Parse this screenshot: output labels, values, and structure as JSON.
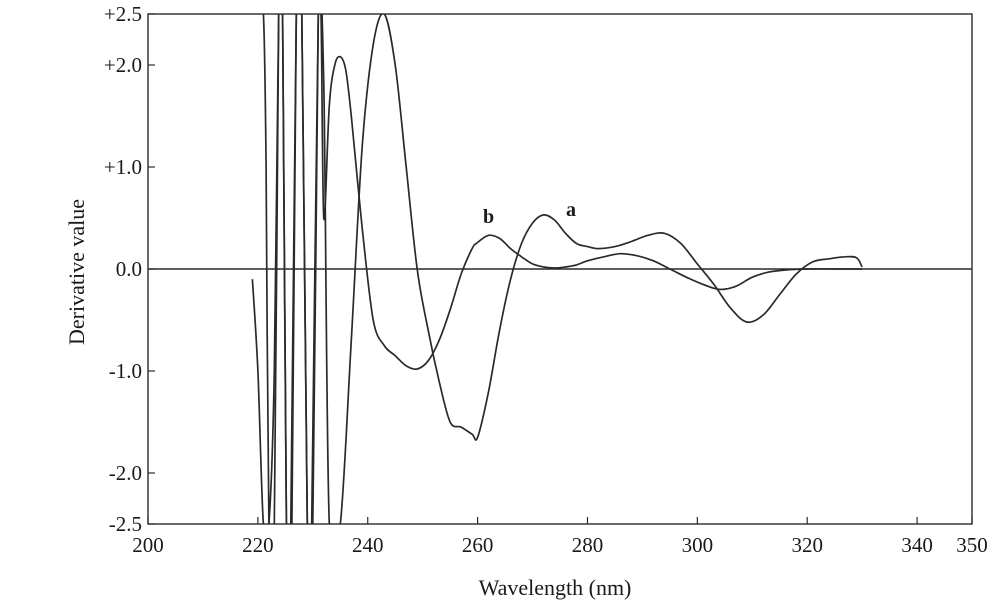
{
  "chart_data": {
    "type": "line",
    "title": "",
    "xlabel": "Wavelength (nm)",
    "ylabel": "Derivative value",
    "xlim": [
      200,
      350
    ],
    "ylim": [
      -2.5,
      2.5
    ],
    "grid": false,
    "legend": "none",
    "x_ticks": [
      {
        "value": 200,
        "label": "200"
      },
      {
        "value": 220,
        "label": "220"
      },
      {
        "value": 240,
        "label": "240"
      },
      {
        "value": 260,
        "label": "260"
      },
      {
        "value": 280,
        "label": "280"
      },
      {
        "value": 300,
        "label": "300"
      },
      {
        "value": 320,
        "label": "320"
      },
      {
        "value": 340,
        "label": "340"
      },
      {
        "value": 350,
        "label": "350"
      }
    ],
    "y_ticks": [
      {
        "value": 2.5,
        "label": "+2.5"
      },
      {
        "value": 2.0,
        "label": "+2.0"
      },
      {
        "value": 1.0,
        "label": "+1.0"
      },
      {
        "value": 0.0,
        "label": "0.0"
      },
      {
        "value": -1.0,
        "label": "-1.0"
      },
      {
        "value": -2.0,
        "label": "-2.0"
      },
      {
        "value": -2.5,
        "label": "-2.5"
      }
    ],
    "series": [
      {
        "name": "a",
        "label_at": {
          "x": 277,
          "y": 0.52
        },
        "x": [
          219.0,
          220.0,
          221.0,
          222.0,
          223.0,
          223.8,
          224.5,
          225.2,
          226.2,
          227.0,
          228.0,
          229.0,
          229.8,
          231.0,
          232.0,
          233.0,
          235.0,
          237.0,
          239.0,
          241.0,
          243.0,
          245.0,
          247.0,
          249.0,
          251.0,
          253.0,
          255.0,
          257.0,
          259.0,
          260.0,
          262.0,
          264.0,
          266.0,
          268.0,
          270.0,
          272.0,
          274.0,
          276.0,
          278.0,
          280.0,
          282.0,
          285.0,
          288.0,
          291.0,
          294.0,
          297.0,
          300.0,
          303.0,
          306.0,
          309.0,
          312.0,
          315.0,
          318.0,
          321.0,
          324.0,
          327.0,
          329.0,
          330.0
        ],
        "y": [
          -0.1,
          -1.0,
          -2.5,
          -2.5,
          -1.0,
          2.5,
          2.5,
          -2.5,
          -2.5,
          2.5,
          2.5,
          -2.5,
          -2.5,
          2.5,
          1.8,
          -2.5,
          -2.5,
          -0.7,
          1.2,
          2.2,
          2.5,
          2.0,
          1.0,
          0.0,
          -0.6,
          -1.1,
          -1.5,
          -1.55,
          -1.62,
          -1.65,
          -1.2,
          -0.6,
          -0.1,
          0.25,
          0.45,
          0.53,
          0.48,
          0.35,
          0.25,
          0.22,
          0.2,
          0.22,
          0.27,
          0.33,
          0.35,
          0.25,
          0.05,
          -0.15,
          -0.38,
          -0.52,
          -0.45,
          -0.25,
          -0.05,
          0.07,
          0.1,
          0.12,
          0.11,
          0.02
        ]
      },
      {
        "name": "b",
        "label_at": {
          "x": 262,
          "y": 0.45
        },
        "x": [
          220.0,
          221.0,
          221.5,
          222.0,
          223.0,
          223.8,
          224.5,
          225.2,
          226.0,
          227.0,
          228.0,
          229.0,
          230.0,
          231.0,
          231.5,
          232.0,
          233.0,
          234.0,
          235.0,
          236.0,
          237.0,
          239.0,
          241.0,
          243.0,
          245.0,
          247.0,
          249.0,
          251.0,
          253.0,
          255.0,
          257.0,
          259.0,
          260.0,
          262.0,
          264.0,
          266.0,
          268.0,
          270.0,
          272.0,
          274.0,
          276.0,
          278.0,
          280.0,
          283.0,
          286.0,
          289.0,
          292.0,
          295.0,
          298.0,
          301.0,
          304.0,
          307.0,
          310.0,
          313.0,
          316.0,
          320.0,
          325.0,
          330.0
        ],
        "y": [
          2.5,
          2.5,
          1.0,
          -2.5,
          -2.5,
          2.5,
          2.5,
          -2.5,
          -2.5,
          2.5,
          2.5,
          -2.5,
          -2.5,
          2.5,
          2.5,
          0.5,
          1.6,
          2.0,
          2.08,
          1.95,
          1.5,
          0.4,
          -0.5,
          -0.75,
          -0.85,
          -0.95,
          -0.98,
          -0.9,
          -0.7,
          -0.4,
          -0.05,
          0.2,
          0.26,
          0.33,
          0.3,
          0.2,
          0.12,
          0.05,
          0.02,
          0.01,
          0.02,
          0.04,
          0.08,
          0.12,
          0.15,
          0.13,
          0.08,
          0.0,
          -0.08,
          -0.15,
          -0.2,
          -0.17,
          -0.08,
          -0.03,
          -0.01,
          0.0,
          0.0,
          0.0
        ]
      }
    ]
  }
}
